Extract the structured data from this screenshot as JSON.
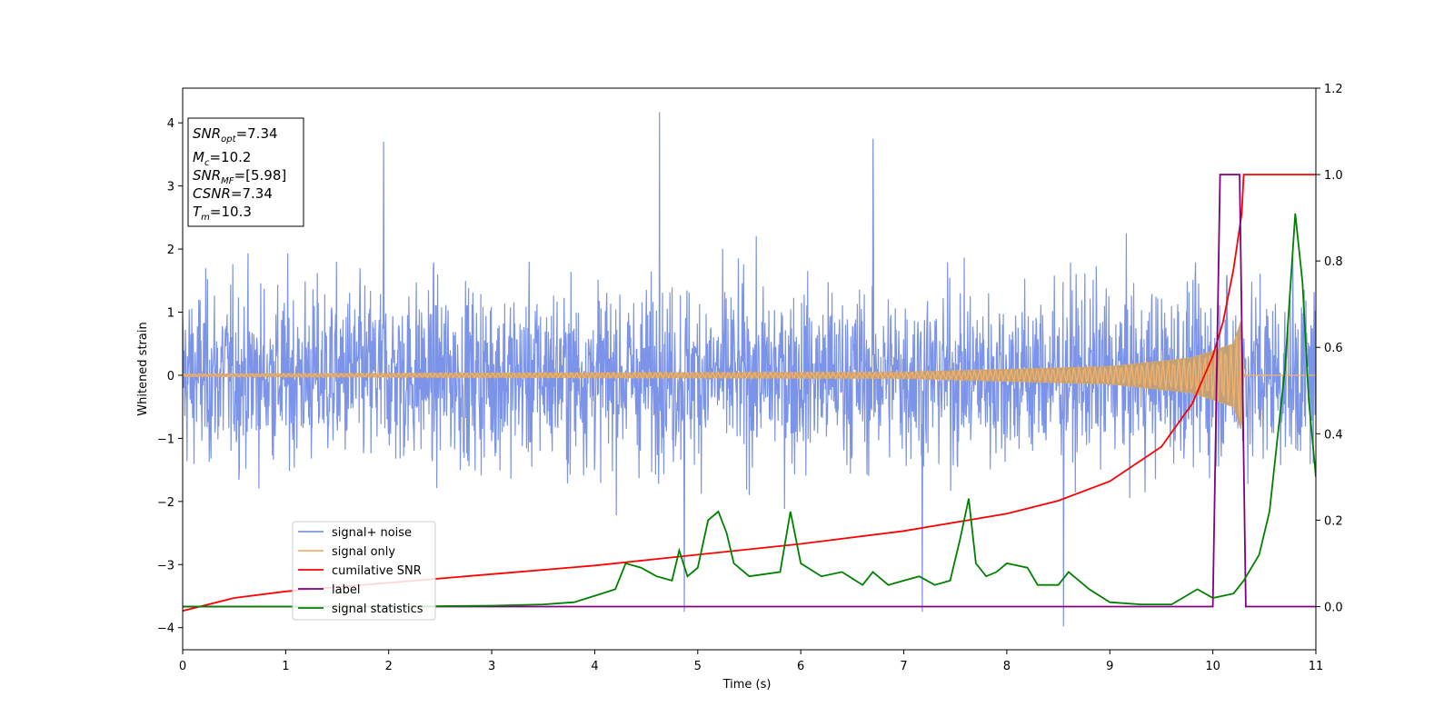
{
  "chart_data": {
    "type": "line",
    "xlabel": "Time (s)",
    "ylabel": "Whitened strain",
    "xlim": [
      0,
      11
    ],
    "ylim_left": [
      -4.35,
      4.55
    ],
    "ylim_right": [
      -0.1,
      1.2
    ],
    "x_ticks": [
      0,
      1,
      2,
      3,
      4,
      5,
      6,
      7,
      8,
      9,
      10,
      11
    ],
    "y_ticks_left": [
      -4,
      -3,
      -2,
      -1,
      0,
      1,
      2,
      3,
      4
    ],
    "y_ticks_right": [
      0.0,
      0.2,
      0.4,
      0.6,
      0.8,
      1.0,
      1.2
    ],
    "grid": false,
    "legend_position": "lower-left",
    "info_box": {
      "snr_opt": "7.34",
      "mc": "10.2",
      "snr_mf": "[5.98]",
      "csnr": "7.34",
      "tm": "10.3"
    },
    "series": [
      {
        "name": "signal+ noise",
        "axis": "left",
        "color": "#7b93e8",
        "description_stats": {
          "std": 0.9,
          "max": 4.17,
          "min": -4.0
        },
        "notable_peaks": [
          [
            4.63,
            4.17
          ],
          [
            1.95,
            3.7
          ],
          [
            6.7,
            3.75
          ],
          [
            8.55,
            -3.98
          ],
          [
            4.87,
            -3.75
          ],
          [
            7.18,
            -3.75
          ]
        ]
      },
      {
        "name": "signal only",
        "axis": "left",
        "color": "#f0b070",
        "envelope": [
          [
            0,
            0.02
          ],
          [
            4,
            0.04
          ],
          [
            7,
            0.05
          ],
          [
            9,
            0.14
          ],
          [
            9.8,
            0.28
          ],
          [
            10.2,
            0.5
          ],
          [
            10.28,
            0.9
          ],
          [
            10.3,
            0.0
          ],
          [
            11,
            0.0
          ]
        ]
      },
      {
        "name": "cumilative SNR",
        "axis": "right",
        "color": "#ff0000",
        "points": [
          [
            0,
            -0.01
          ],
          [
            0.5,
            0.02
          ],
          [
            1,
            0.035
          ],
          [
            2,
            0.055
          ],
          [
            3,
            0.075
          ],
          [
            4,
            0.095
          ],
          [
            5,
            0.12
          ],
          [
            6,
            0.145
          ],
          [
            7,
            0.175
          ],
          [
            8,
            0.215
          ],
          [
            8.5,
            0.245
          ],
          [
            9,
            0.29
          ],
          [
            9.5,
            0.37
          ],
          [
            9.8,
            0.47
          ],
          [
            10,
            0.58
          ],
          [
            10.1,
            0.66
          ],
          [
            10.2,
            0.78
          ],
          [
            10.28,
            0.91
          ],
          [
            10.3,
            1.0
          ],
          [
            11,
            1.0
          ]
        ]
      },
      {
        "name": "label",
        "axis": "right",
        "color": "#800080",
        "points": [
          [
            0,
            0.0
          ],
          [
            10.0,
            0.0
          ],
          [
            10.07,
            1.0
          ],
          [
            10.26,
            1.0
          ],
          [
            10.32,
            0.0
          ],
          [
            11,
            0.0
          ]
        ]
      },
      {
        "name": "signal statistics",
        "axis": "right",
        "color": "#008000",
        "points": [
          [
            0,
            0.0
          ],
          [
            1,
            0.0
          ],
          [
            2,
            0.0
          ],
          [
            3,
            0.002
          ],
          [
            3.5,
            0.005
          ],
          [
            3.8,
            0.01
          ],
          [
            4.0,
            0.025
          ],
          [
            4.2,
            0.04
          ],
          [
            4.3,
            0.1
          ],
          [
            4.45,
            0.09
          ],
          [
            4.6,
            0.07
          ],
          [
            4.75,
            0.06
          ],
          [
            4.82,
            0.13
          ],
          [
            4.9,
            0.07
          ],
          [
            5.0,
            0.09
          ],
          [
            5.1,
            0.2
          ],
          [
            5.2,
            0.22
          ],
          [
            5.28,
            0.17
          ],
          [
            5.35,
            0.1
          ],
          [
            5.5,
            0.07
          ],
          [
            5.8,
            0.08
          ],
          [
            5.9,
            0.22
          ],
          [
            6.0,
            0.1
          ],
          [
            6.2,
            0.07
          ],
          [
            6.4,
            0.08
          ],
          [
            6.6,
            0.05
          ],
          [
            6.7,
            0.08
          ],
          [
            6.85,
            0.05
          ],
          [
            7.0,
            0.06
          ],
          [
            7.15,
            0.07
          ],
          [
            7.3,
            0.05
          ],
          [
            7.45,
            0.06
          ],
          [
            7.55,
            0.16
          ],
          [
            7.63,
            0.25
          ],
          [
            7.7,
            0.1
          ],
          [
            7.8,
            0.07
          ],
          [
            7.9,
            0.08
          ],
          [
            8.0,
            0.1
          ],
          [
            8.2,
            0.09
          ],
          [
            8.3,
            0.05
          ],
          [
            8.5,
            0.05
          ],
          [
            8.6,
            0.08
          ],
          [
            8.8,
            0.04
          ],
          [
            9.0,
            0.01
          ],
          [
            9.3,
            0.005
          ],
          [
            9.6,
            0.005
          ],
          [
            9.85,
            0.04
          ],
          [
            10.0,
            0.02
          ],
          [
            10.2,
            0.03
          ],
          [
            10.3,
            0.06
          ],
          [
            10.45,
            0.12
          ],
          [
            10.55,
            0.22
          ],
          [
            10.7,
            0.55
          ],
          [
            10.8,
            0.91
          ],
          [
            10.87,
            0.75
          ],
          [
            10.93,
            0.48
          ],
          [
            11.0,
            0.3
          ]
        ]
      }
    ]
  }
}
